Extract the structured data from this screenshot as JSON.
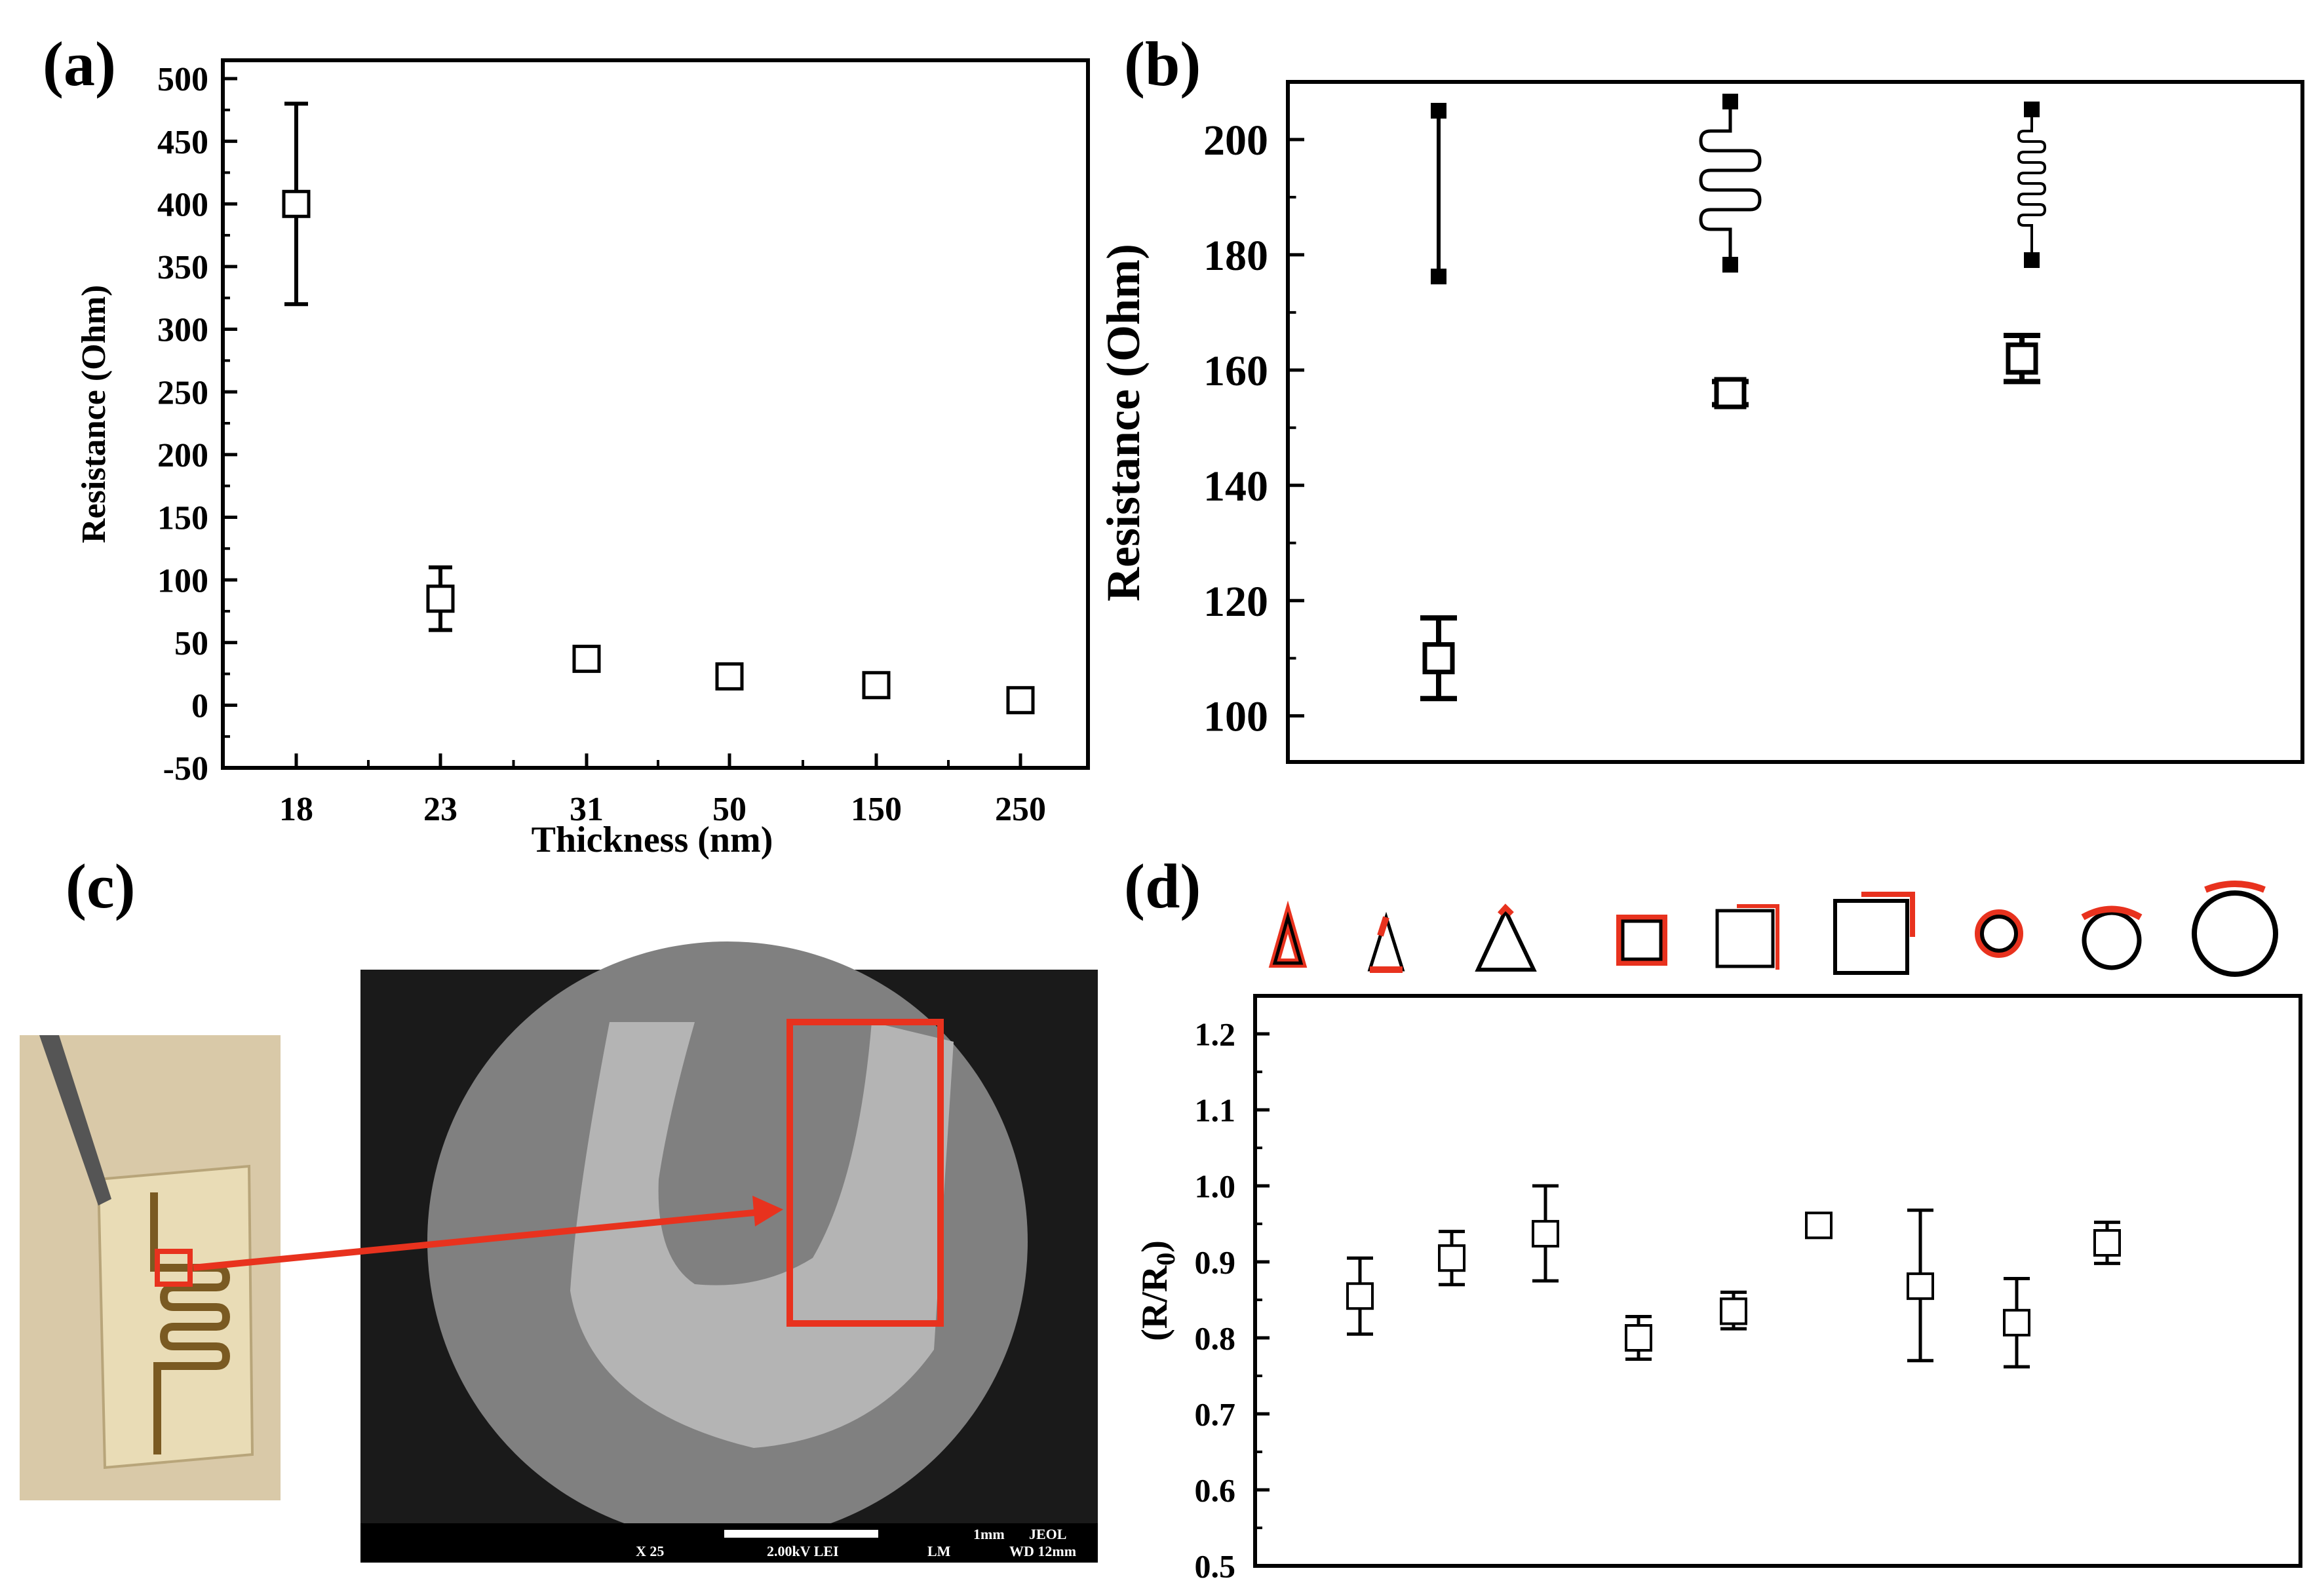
{
  "panels": {
    "a": "(a)",
    "b": "(b)",
    "c": "(c)",
    "d": "(d)"
  },
  "colors": {
    "axis": "#000000",
    "highlight": "#e8321e",
    "sem_bg": "#1a1a1a",
    "photo_bg": "#d9c9a8"
  },
  "sem_info": {
    "scale": "1mm",
    "brand": "JEOL",
    "mag": "X 25",
    "voltage": "2.00kV LEI",
    "mode": "LM",
    "wd": "WD 12mm"
  },
  "chart_data": [
    {
      "id": "a",
      "type": "scatter",
      "ylabel": "Resistance (Ohm)",
      "xlabel": "Thickness (nm)",
      "categories": [
        "18",
        "23",
        "31",
        "50",
        "150",
        "250"
      ],
      "values": [
        400,
        85,
        37,
        23,
        16,
        4
      ],
      "err_low": [
        320,
        60,
        32,
        19,
        12,
        0
      ],
      "err_high": [
        480,
        110,
        42,
        28,
        20,
        8
      ],
      "ylim": [
        -50,
        500
      ],
      "yticks": [
        "-50",
        "0",
        "50",
        "100",
        "150",
        "200",
        "250",
        "300",
        "350",
        "400",
        "450",
        "500"
      ]
    },
    {
      "id": "b",
      "type": "scatter",
      "ylabel": "Resistance (Ohm)",
      "xlabel": "",
      "categories": [
        "straight",
        "wide serpentine",
        "narrow serpentine"
      ],
      "values": [
        110,
        156,
        162
      ],
      "err_low": [
        103,
        154,
        158
      ],
      "err_high": [
        117,
        158,
        166
      ],
      "ylim": [
        92,
        210
      ],
      "yticks": [
        "100",
        "120",
        "140",
        "160",
        "180",
        "200"
      ]
    },
    {
      "id": "d",
      "type": "scatter",
      "ylabel": "(R/R0)",
      "xlabel": "",
      "categories": [
        "triangle-s",
        "triangle-m",
        "triangle-l",
        "square-s",
        "square-m",
        "square-l",
        "circle-s",
        "circle-m",
        "circle-l"
      ],
      "values": [
        0.855,
        0.905,
        0.937,
        0.8,
        0.835,
        0.948,
        0.868,
        0.82,
        0.925
      ],
      "err_low": [
        0.805,
        0.87,
        0.875,
        0.772,
        0.812,
        0.938,
        0.77,
        0.762,
        0.898
      ],
      "err_high": [
        0.905,
        0.94,
        1.0,
        0.828,
        0.86,
        0.958,
        0.968,
        0.878,
        0.952
      ],
      "ylim": [
        0.5,
        1.25
      ],
      "yticks": [
        "0.5",
        "0.6",
        "0.7",
        "0.8",
        "0.9",
        "1.0",
        "1.1",
        "1.2"
      ]
    }
  ]
}
